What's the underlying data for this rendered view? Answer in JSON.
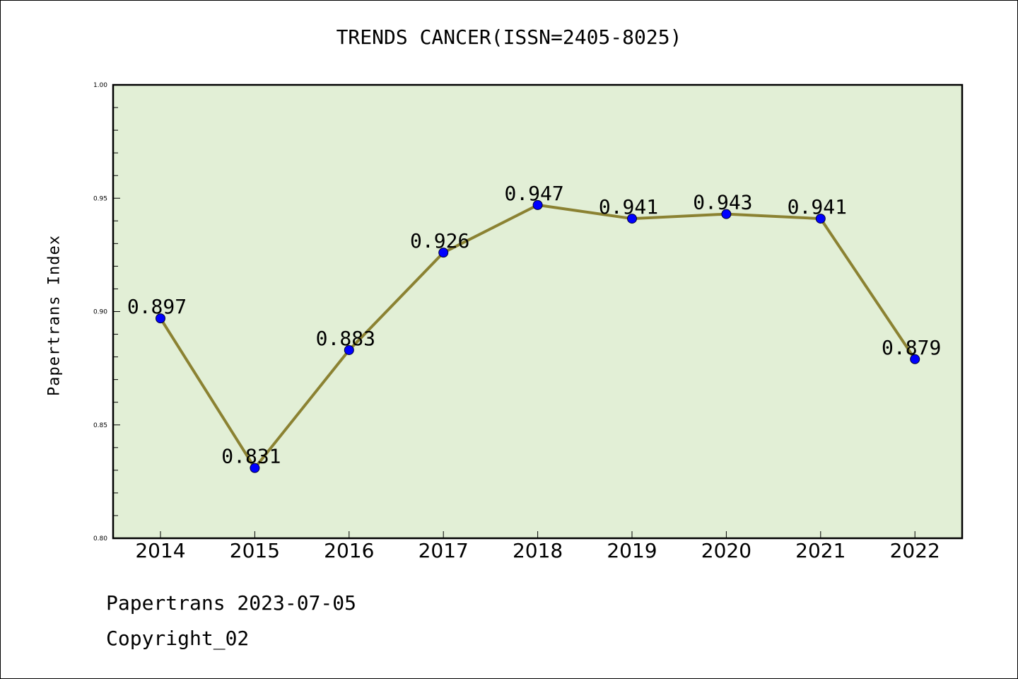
{
  "title": "TRENDS CANCER(ISSN=2405-8025)",
  "footer": {
    "date_line": "Papertrans 2023-07-05",
    "copyright_line": "Copyright_02"
  },
  "colors": {
    "plot_background": "#e2efd6",
    "line": "#8b8232",
    "marker": "#0000ff"
  },
  "chart_data": {
    "type": "line",
    "title": "TRENDS CANCER(ISSN=2405-8025)",
    "xlabel": "",
    "ylabel": "Papertrans Index",
    "categories": [
      "2014",
      "2015",
      "2016",
      "2017",
      "2018",
      "2019",
      "2020",
      "2021",
      "2022"
    ],
    "series": [
      {
        "values": [
          0.897,
          0.831,
          0.883,
          0.926,
          0.947,
          0.941,
          0.943,
          0.941,
          0.879
        ],
        "data_labels": [
          "0.897",
          "0.831",
          "0.883",
          "0.926",
          "0.947",
          "0.941",
          "0.943",
          "0.941",
          "0.879"
        ]
      }
    ],
    "ylim": [
      0.8,
      1.0
    ],
    "yticks": [
      "0.80",
      "0.85",
      "0.90",
      "0.95",
      "1.00"
    ],
    "grid": false,
    "legend": "none"
  }
}
